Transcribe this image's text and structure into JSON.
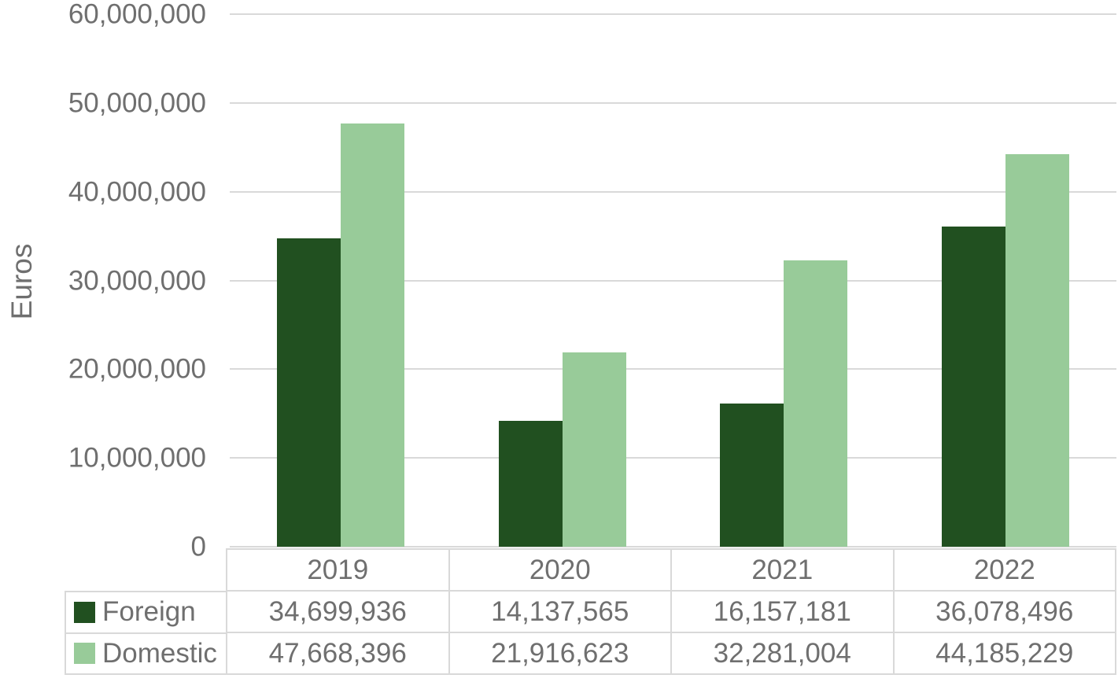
{
  "colors": {
    "foreign_series": "#215020",
    "domestic_series": "#98CB99",
    "gridline": "#D9D9D9",
    "text": "#6F6F6F",
    "background": "#FFFFFF"
  },
  "chart_data": {
    "type": "bar",
    "title": "",
    "xlabel": "",
    "ylabel": "Euros",
    "categories": [
      "2019",
      "2020",
      "2021",
      "2022"
    ],
    "series": [
      {
        "name": "Foreign",
        "color": "#215020",
        "values": [
          34699936,
          14137565,
          16157181,
          36078496
        ],
        "labels": [
          "34,699,936",
          "14,137,565",
          "16,157,181",
          "36,078,496"
        ]
      },
      {
        "name": "Domestic",
        "color": "#98CB99",
        "values": [
          47668396,
          21916623,
          32281004,
          44185229
        ],
        "labels": [
          "47,668,396",
          "21,916,623",
          "32,281,004",
          "44,185,229"
        ]
      }
    ],
    "ylim": [
      0,
      60000000
    ],
    "ytick_interval": 10000000,
    "yticks": [
      "60,000,000",
      "50,000,000",
      "40,000,000",
      "30,000,000",
      "20,000,000",
      "10,000,000",
      "0"
    ],
    "grid": true,
    "legend_position": "data-table-below-axis"
  }
}
